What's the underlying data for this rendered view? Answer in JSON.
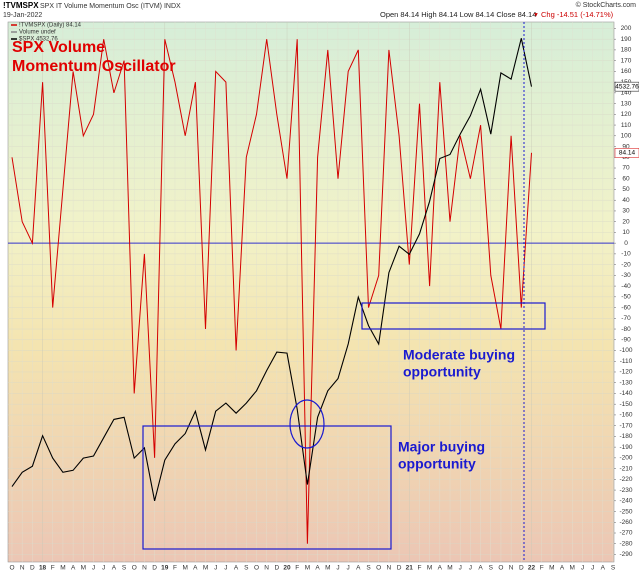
{
  "chart_data": {
    "type": "line",
    "symbol": "!TVMSPX",
    "title": "SPX IT Volume Momentum Osc (ITVM) INDX",
    "date": "19-Jan-2022",
    "ohlc": "Open 84.14 High 84.14 Low 84.14 Close 84.14",
    "change": "Chg -14.51 (-14.71%)",
    "copyright": "© StockCharts.com",
    "legend": [
      "!TVMSPX (Daily) 84.14",
      "Volume undef",
      "$SPX 4532.76"
    ],
    "annotations": [
      {
        "lines": [
          "SPX Volume",
          "Momentum Oscillator"
        ],
        "color": "#e00000"
      },
      {
        "lines": [
          "Moderate buying",
          "opportunity"
        ],
        "color": "#1a1ad0"
      },
      {
        "lines": [
          "Major buying",
          "opportunity"
        ],
        "color": "#1a1ad0"
      }
    ],
    "categories": [
      "O",
      "N",
      "D",
      "18",
      "F",
      "M",
      "A",
      "M",
      "J",
      "J",
      "A",
      "S",
      "O",
      "N",
      "D",
      "19",
      "F",
      "M",
      "A",
      "M",
      "J",
      "J",
      "A",
      "S",
      "O",
      "N",
      "D",
      "20",
      "F",
      "M",
      "A",
      "M",
      "J",
      "J",
      "A",
      "S",
      "O",
      "N",
      "D",
      "21",
      "F",
      "M",
      "A",
      "M",
      "J",
      "J",
      "A",
      "S",
      "O",
      "N",
      "D",
      "22",
      "F",
      "M",
      "A",
      "M",
      "J",
      "J",
      "A",
      "S"
    ],
    "series": [
      {
        "name": "!TVMSPX",
        "color": "#d40000",
        "last_label": "84.14",
        "values": [
          80,
          20,
          0,
          150,
          -60,
          50,
          160,
          100,
          120,
          190,
          140,
          170,
          -140,
          -10,
          -200,
          190,
          150,
          100,
          150,
          -80,
          160,
          150,
          -100,
          80,
          120,
          190,
          120,
          60,
          190,
          -280,
          80,
          180,
          60,
          160,
          180,
          -60,
          -30,
          180,
          100,
          -20,
          130,
          -40,
          150,
          20,
          100,
          60,
          110,
          -30,
          -80,
          100,
          -60,
          84.14,
          null,
          null,
          null,
          null,
          null,
          null,
          null,
          null
        ]
      },
      {
        "name": "$SPX",
        "color": "#000000",
        "axis": "y2",
        "last_label": "4532.76",
        "values": [
          2570,
          2640,
          2670,
          2820,
          2710,
          2640,
          2650,
          2710,
          2720,
          2810,
          2900,
          2910,
          2710,
          2760,
          2500,
          2700,
          2780,
          2830,
          2940,
          2750,
          2940,
          2980,
          2930,
          2980,
          3040,
          3140,
          3230,
          3225,
          2950,
          2580,
          2910,
          3040,
          3100,
          3270,
          3500,
          3360,
          3270,
          3620,
          3750,
          3710,
          3810,
          3970,
          4180,
          4200,
          4300,
          4390,
          4520,
          4300,
          4600,
          4570,
          4770,
          4532.76,
          null,
          null,
          null,
          null,
          null,
          null,
          null,
          null
        ]
      }
    ],
    "ylim": [
      -297,
      206
    ],
    "yticks": [
      200,
      190,
      180,
      170,
      160,
      150,
      140,
      130,
      120,
      110,
      100,
      90,
      80,
      70,
      60,
      50,
      40,
      30,
      20,
      10,
      0,
      -10,
      -20,
      -30,
      -40,
      -50,
      -60,
      -70,
      -80,
      -90,
      -100,
      -110,
      -120,
      -130,
      -140,
      -150,
      -160,
      -170,
      -180,
      -190,
      -200,
      -210,
      -220,
      -230,
      -240,
      -250,
      -260,
      -270,
      -280,
      -290
    ],
    "y2lim": [
      2200,
      4850
    ],
    "zero_line": 0,
    "grid": true
  }
}
